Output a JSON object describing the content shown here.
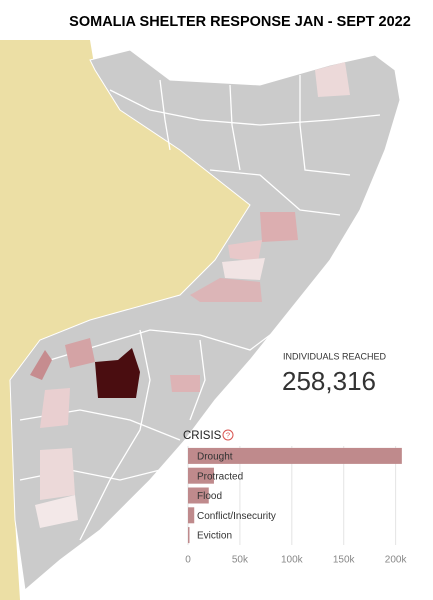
{
  "title": "SOMALIA SHELTER RESPONSE JAN - SEPT 2022",
  "kpi": {
    "label": "INDIVIDUALS REACHED",
    "value": "258,316"
  },
  "chart_data": {
    "type": "bar",
    "orientation": "horizontal",
    "title": "CRISIS",
    "categories": [
      "Drought",
      "Protracted",
      "Flood",
      "Conflict/Insecurity",
      "Eviction"
    ],
    "values": [
      206000,
      25000,
      20000,
      6000,
      1300
    ],
    "color": "#bf8a8c",
    "xlim": [
      0,
      210000
    ],
    "xticks": [
      0,
      {
        "value": 50000,
        "label": "50k"
      },
      {
        "value": 100000,
        "label": "100k"
      },
      {
        "value": 150000,
        "label": "150k"
      },
      {
        "value": 200000,
        "label": "200k"
      }
    ],
    "grid": true
  }
}
